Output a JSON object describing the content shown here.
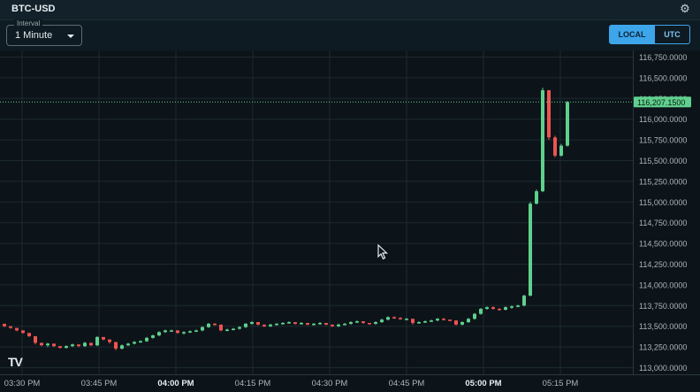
{
  "header": {
    "title": "BTC-USD",
    "settings_icon": "gear-icon"
  },
  "controls": {
    "interval_label": "Interval",
    "interval_value": "1 Minute",
    "tz_local": "LOCAL",
    "tz_utc": "UTC",
    "tz_selected": "LOCAL"
  },
  "chart_data": {
    "type": "candlestick",
    "title": "BTC-USD",
    "ylim": [
      112920,
      116830
    ],
    "y_ticks": [
      {
        "value": 116750,
        "label": "116,750.0000"
      },
      {
        "value": 116500,
        "label": "116,500.0000"
      },
      {
        "value": 116250,
        "label": "116,250.0000"
      },
      {
        "value": 116000,
        "label": "116,000.0000"
      },
      {
        "value": 115750,
        "label": "115,750.0000"
      },
      {
        "value": 115500,
        "label": "115,500.0000"
      },
      {
        "value": 115250,
        "label": "115,250.0000"
      },
      {
        "value": 115000,
        "label": "115,000.0000"
      },
      {
        "value": 114750,
        "label": "114,750.0000"
      },
      {
        "value": 114500,
        "label": "114,500.0000"
      },
      {
        "value": 114250,
        "label": "114,250.0000"
      },
      {
        "value": 114000,
        "label": "114,000.0000"
      },
      {
        "value": 113750,
        "label": "113,750.0000"
      },
      {
        "value": 113500,
        "label": "113,500.0000"
      },
      {
        "value": 113250,
        "label": "113,250.0000"
      },
      {
        "value": 113000,
        "label": "113,000.0000"
      }
    ],
    "x_ticks": [
      {
        "minute": 0,
        "label": "03:30 PM",
        "bold": false
      },
      {
        "minute": 15,
        "label": "03:45 PM",
        "bold": false
      },
      {
        "minute": 30,
        "label": "04:00 PM",
        "bold": true
      },
      {
        "minute": 45,
        "label": "04:15 PM",
        "bold": false
      },
      {
        "minute": 60,
        "label": "04:30 PM",
        "bold": false
      },
      {
        "minute": 75,
        "label": "04:45 PM",
        "bold": false
      },
      {
        "minute": 90,
        "label": "05:00 PM",
        "bold": true
      },
      {
        "minute": 105,
        "label": "05:15 PM",
        "bold": false
      }
    ],
    "last_price": 116207.15,
    "last_price_label": "116,207.1500",
    "up_color": "#5fd08d",
    "down_color": "#ef5350",
    "candles": [
      [
        113530,
        113530,
        113490,
        113500
      ],
      [
        113500,
        113500,
        113470,
        113480
      ],
      [
        113480,
        113480,
        113440,
        113450
      ],
      [
        113450,
        113450,
        113410,
        113420
      ],
      [
        113420,
        113420,
        113370,
        113380
      ],
      [
        113380,
        113380,
        113280,
        113300
      ],
      [
        113300,
        113300,
        113260,
        113270
      ],
      [
        113270,
        113300,
        113250,
        113290
      ],
      [
        113290,
        113290,
        113250,
        113260
      ],
      [
        113260,
        113260,
        113230,
        113240
      ],
      [
        113240,
        113270,
        113230,
        113260
      ],
      [
        113260,
        113290,
        113250,
        113280
      ],
      [
        113280,
        113280,
        113250,
        113260
      ],
      [
        113260,
        113310,
        113250,
        113300
      ],
      [
        113300,
        113300,
        113260,
        113270
      ],
      [
        113270,
        113380,
        113260,
        113370
      ],
      [
        113370,
        113370,
        113330,
        113340
      ],
      [
        113340,
        113340,
        113290,
        113310
      ],
      [
        113310,
        113310,
        113210,
        113230
      ],
      [
        113230,
        113280,
        113220,
        113270
      ],
      [
        113270,
        113300,
        113260,
        113290
      ],
      [
        113290,
        113320,
        113280,
        113310
      ],
      [
        113310,
        113330,
        113300,
        113320
      ],
      [
        113320,
        113370,
        113310,
        113360
      ],
      [
        113360,
        113400,
        113350,
        113390
      ],
      [
        113390,
        113440,
        113380,
        113430
      ],
      [
        113430,
        113460,
        113420,
        113450
      ],
      [
        113450,
        113460,
        113440,
        113450
      ],
      [
        113450,
        113450,
        113410,
        113420
      ],
      [
        113420,
        113440,
        113400,
        113430
      ],
      [
        113430,
        113450,
        113420,
        113440
      ],
      [
        113440,
        113460,
        113430,
        113450
      ],
      [
        113450,
        113500,
        113440,
        113490
      ],
      [
        113490,
        113540,
        113480,
        113530
      ],
      [
        113530,
        113540,
        113510,
        113520
      ],
      [
        113520,
        113520,
        113440,
        113450
      ],
      [
        113450,
        113470,
        113440,
        113460
      ],
      [
        113460,
        113480,
        113450,
        113470
      ],
      [
        113470,
        113500,
        113460,
        113490
      ],
      [
        113490,
        113540,
        113480,
        113530
      ],
      [
        113530,
        113560,
        113520,
        113550
      ],
      [
        113550,
        113550,
        113510,
        113520
      ],
      [
        113520,
        113520,
        113490,
        113500
      ],
      [
        113500,
        113530,
        113490,
        113520
      ],
      [
        113520,
        113540,
        113510,
        113530
      ],
      [
        113530,
        113550,
        113520,
        113540
      ],
      [
        113540,
        113560,
        113530,
        113550
      ],
      [
        113550,
        113550,
        113520,
        113530
      ],
      [
        113530,
        113550,
        113520,
        113540
      ],
      [
        113540,
        113540,
        113510,
        113520
      ],
      [
        113520,
        113540,
        113510,
        113530
      ],
      [
        113530,
        113550,
        113520,
        113540
      ],
      [
        113540,
        113540,
        113510,
        113520
      ],
      [
        113520,
        113520,
        113490,
        113500
      ],
      [
        113500,
        113530,
        113490,
        113520
      ],
      [
        113520,
        113540,
        113510,
        113530
      ],
      [
        113530,
        113560,
        113520,
        113550
      ],
      [
        113550,
        113570,
        113540,
        113560
      ],
      [
        113560,
        113560,
        113530,
        113540
      ],
      [
        113540,
        113540,
        113520,
        113530
      ],
      [
        113530,
        113560,
        113520,
        113550
      ],
      [
        113550,
        113590,
        113540,
        113580
      ],
      [
        113580,
        113620,
        113570,
        113610
      ],
      [
        113610,
        113620,
        113590,
        113600
      ],
      [
        113600,
        113610,
        113580,
        113590
      ],
      [
        113590,
        113600,
        113580,
        113590
      ],
      [
        113590,
        113590,
        113520,
        113540
      ],
      [
        113540,
        113560,
        113530,
        113550
      ],
      [
        113550,
        113570,
        113540,
        113560
      ],
      [
        113560,
        113580,
        113550,
        113570
      ],
      [
        113570,
        113600,
        113560,
        113590
      ],
      [
        113590,
        113600,
        113570,
        113580
      ],
      [
        113580,
        113580,
        113560,
        113570
      ],
      [
        113570,
        113570,
        113510,
        113520
      ],
      [
        113520,
        113560,
        113510,
        113550
      ],
      [
        113550,
        113600,
        113540,
        113590
      ],
      [
        113590,
        113660,
        113580,
        113650
      ],
      [
        113650,
        113720,
        113640,
        113710
      ],
      [
        113710,
        113740,
        113700,
        113730
      ],
      [
        113730,
        113740,
        113700,
        113710
      ],
      [
        113710,
        113720,
        113690,
        113700
      ],
      [
        113700,
        113740,
        113690,
        113730
      ],
      [
        113730,
        113750,
        113710,
        113740
      ],
      [
        113740,
        113760,
        113730,
        113750
      ],
      [
        113750,
        113880,
        113740,
        113870
      ],
      [
        113870,
        115000,
        113860,
        114980
      ],
      [
        114980,
        115150,
        114970,
        115130
      ],
      [
        115130,
        116380,
        115120,
        116350
      ],
      [
        116350,
        116320,
        115750,
        115780
      ],
      [
        115780,
        115800,
        115540,
        115560
      ],
      [
        115560,
        115700,
        115550,
        115680
      ],
      [
        115680,
        116220,
        115670,
        116207
      ]
    ]
  }
}
